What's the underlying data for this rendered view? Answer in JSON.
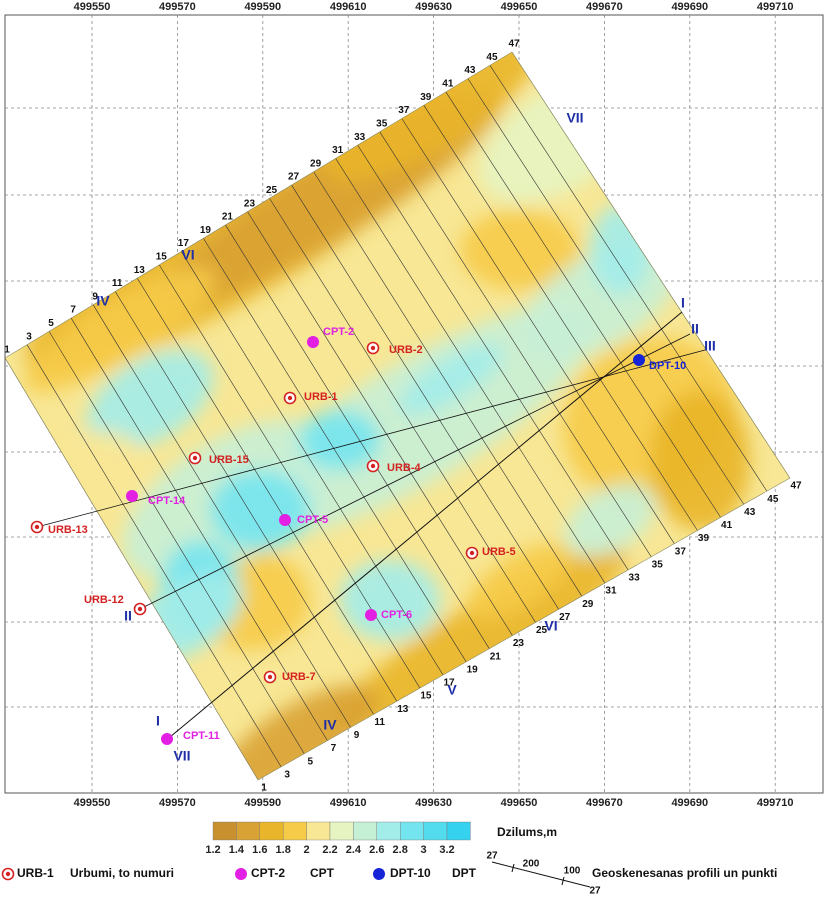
{
  "map": {
    "x_ticks": [
      499550,
      499570,
      499590,
      499610,
      499630,
      499650,
      499670,
      499690,
      499710
    ],
    "profile_numbers": [
      1,
      3,
      5,
      7,
      9,
      11,
      13,
      15,
      17,
      19,
      21,
      23,
      25,
      27,
      29,
      31,
      33,
      35,
      37,
      39,
      41,
      43,
      45,
      47
    ],
    "profile_names": [
      "IV",
      "VI",
      "VII",
      "I",
      "II",
      "III",
      "II",
      "VI",
      "V",
      "IV",
      "I",
      "VII"
    ],
    "points": [
      "CPT-2",
      "URB-2",
      "URB-1",
      "URB-15",
      "URB-4",
      "CPT-14",
      "URB-13",
      "CPT-5",
      "URB-5",
      "URB-12",
      "CPT-6",
      "URB-7",
      "CPT-11",
      "DPT-10"
    ],
    "colorbar": {
      "labels": [
        1.2,
        1.4,
        1.6,
        1.8,
        2,
        2.2,
        2.4,
        2.6,
        2.8,
        3,
        3.2
      ],
      "colors": [
        "#c8902e",
        "#d9a234",
        "#e9b52a",
        "#f6cb48",
        "#f8e795",
        "#e6f4c2",
        "#c6f0d6",
        "#a2ecea",
        "#74e4ee",
        "#52dced",
        "#34d2ee"
      ],
      "title": "Dzilums,m"
    },
    "legend": {
      "items": [
        {
          "symbol": "URB-1",
          "text": "Urbumi, to numuri",
          "color": "#d42222"
        },
        {
          "symbol": "CPT-2",
          "text": "CPT",
          "color": "#e21fe2"
        },
        {
          "symbol": "DPT-10",
          "text": "DPT",
          "color": "#1424d6"
        }
      ],
      "profile_sample": [
        27,
        200,
        100,
        27
      ],
      "profile_text": "Geoskenesanas profili un punkti"
    }
  }
}
